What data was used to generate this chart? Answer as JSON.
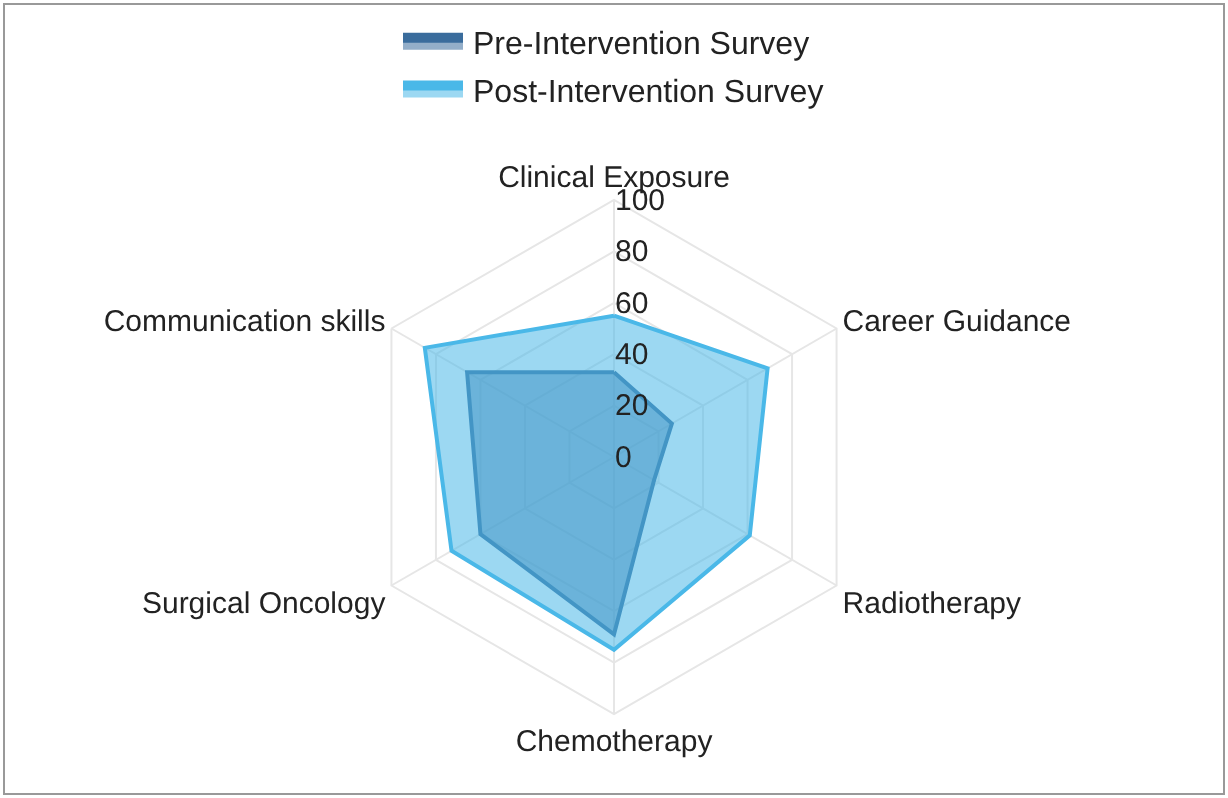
{
  "chart_data": {
    "type": "radar",
    "categories": [
      "Clinical Exposure",
      "Career Guidance",
      "Radiotherapy",
      "Chemotherapy",
      "Surgical Oncology",
      "Communication skills"
    ],
    "series": [
      {
        "name": "Pre-Intervention Survey",
        "color": "#3a6c9c",
        "values": [
          33,
          26,
          18,
          69,
          60,
          66
        ]
      },
      {
        "name": "Post-Intervention Survey",
        "color": "#4ab8e8",
        "values": [
          55,
          69,
          61,
          75,
          73,
          85
        ]
      }
    ],
    "ylim": [
      0,
      100
    ],
    "yticks": [
      0,
      20,
      40,
      60,
      80,
      100
    ],
    "grid": true,
    "legend": "top"
  }
}
